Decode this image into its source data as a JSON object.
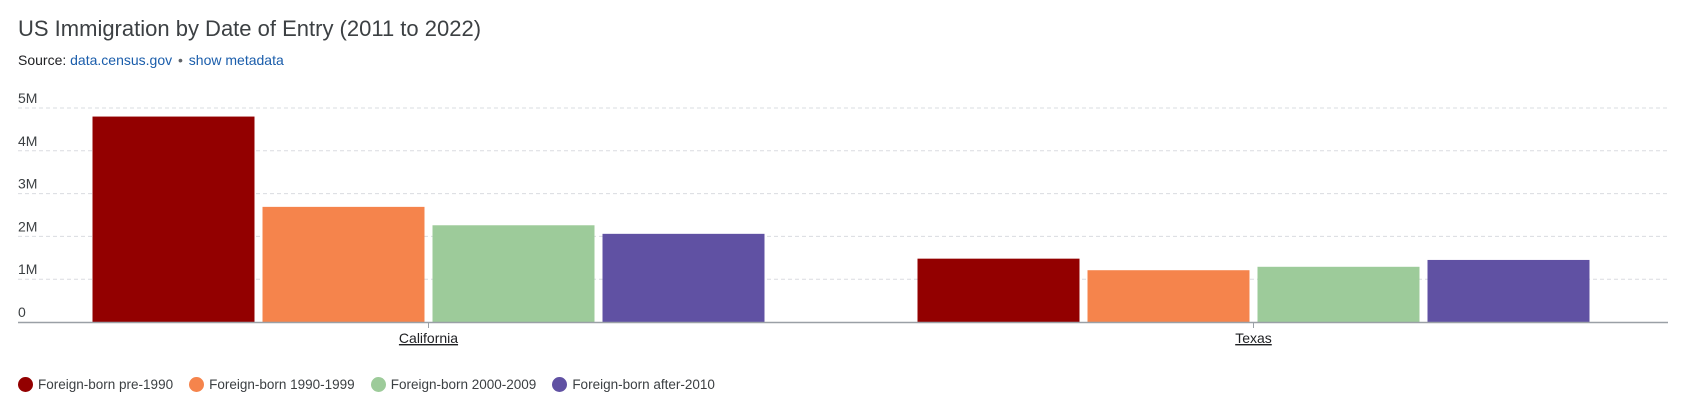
{
  "header": {
    "title": "US Immigration by Date of Entry (2011 to 2022)",
    "source_prefix": "Source:",
    "source_link": "data.census.gov",
    "separator": "•",
    "metadata_link": "show metadata"
  },
  "chart_data": {
    "type": "bar",
    "title": "US Immigration by Date of Entry (2011 to 2022)",
    "categories": [
      "California",
      "Texas"
    ],
    "series": [
      {
        "name": "Foreign-born pre-1990",
        "color": "#930000",
        "values": [
          4800000,
          1480000
        ]
      },
      {
        "name": "Foreign-born 1990-1999",
        "color": "#f5844c",
        "values": [
          2690000,
          1210000
        ]
      },
      {
        "name": "Foreign-born 2000-2009",
        "color": "#9dcb9a",
        "values": [
          2260000,
          1290000
        ]
      },
      {
        "name": "Foreign-born after-2010",
        "color": "#6051a3",
        "values": [
          2060000,
          1450000
        ]
      }
    ],
    "yticks": [
      {
        "value": 0,
        "label": "0"
      },
      {
        "value": 1000000,
        "label": "1M"
      },
      {
        "value": 2000000,
        "label": "2M"
      },
      {
        "value": 3000000,
        "label": "3M"
      },
      {
        "value": 4000000,
        "label": "4M"
      },
      {
        "value": 5000000,
        "label": "5M"
      }
    ],
    "ylim": [
      0,
      5000000
    ],
    "xlabel": "",
    "ylabel": "",
    "grid": true,
    "legend_position": "bottom-left"
  }
}
